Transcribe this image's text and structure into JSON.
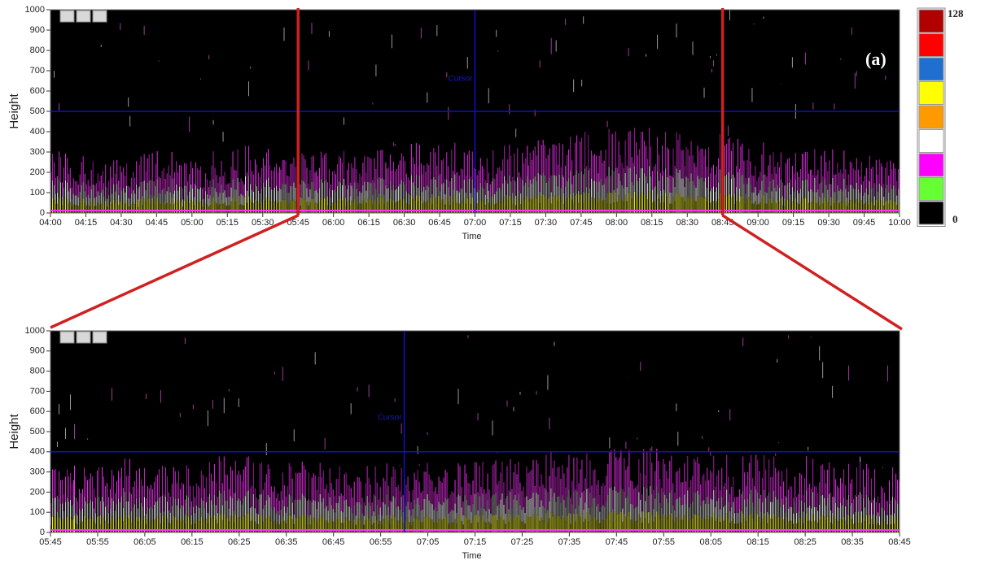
{
  "chart_data": [
    {
      "type": "echogram",
      "x_label": "Time",
      "y_label": "Height",
      "annotation": "(a)",
      "cursor_label": "Cursor",
      "categories": [
        "04:00",
        "04:15",
        "04:30",
        "04:45",
        "05:00",
        "05:15",
        "05:30",
        "05:45",
        "06:00",
        "06:15",
        "06:30",
        "06:45",
        "07:00",
        "07:15",
        "07:30",
        "07:45",
        "08:00",
        "08:15",
        "08:30",
        "08:45",
        "09:00",
        "09:15",
        "09:30",
        "09:45",
        "10:00"
      ],
      "values": [
        300,
        280,
        250,
        300,
        250,
        300,
        320,
        300,
        300,
        320,
        330,
        330,
        300,
        330,
        350,
        380,
        400,
        400,
        380,
        380,
        350,
        300,
        300,
        300,
        250
      ],
      "ylim": [
        0,
        1000
      ],
      "yticks": [
        0,
        100,
        200,
        300,
        400,
        500,
        600,
        700,
        800,
        900,
        1000
      ],
      "cursor": {
        "x": "07:00",
        "y": 500
      },
      "cursor_color": "#1010c8"
    },
    {
      "type": "echogram",
      "x_label": "Time",
      "y_label": "Height",
      "cursor_label": "Cursor",
      "categories": [
        "05:45",
        "05:55",
        "06:05",
        "06:15",
        "06:25",
        "06:35",
        "06:45",
        "06:55",
        "07:05",
        "07:15",
        "07:25",
        "07:35",
        "07:45",
        "07:55",
        "08:05",
        "08:15",
        "08:25",
        "08:35",
        "08:45"
      ],
      "values": [
        300,
        330,
        350,
        340,
        360,
        350,
        330,
        330,
        330,
        340,
        350,
        380,
        400,
        400,
        380,
        380,
        360,
        350,
        320
      ],
      "ylim": [
        0,
        1000
      ],
      "yticks": [
        0,
        100,
        200,
        300,
        400,
        500,
        600,
        700,
        800,
        900,
        1000
      ],
      "cursor": {
        "x": "07:00",
        "y": 400
      },
      "cursor_color": "#1010c8"
    }
  ],
  "colorbar": {
    "colors": [
      "#b00000",
      "#ff0000",
      "#1e6fd0",
      "#ffff00",
      "#ff9900",
      "#ffffff",
      "#ff00ff",
      "#66ff33",
      "#000000"
    ],
    "vmax": 128,
    "vmin": 0
  }
}
